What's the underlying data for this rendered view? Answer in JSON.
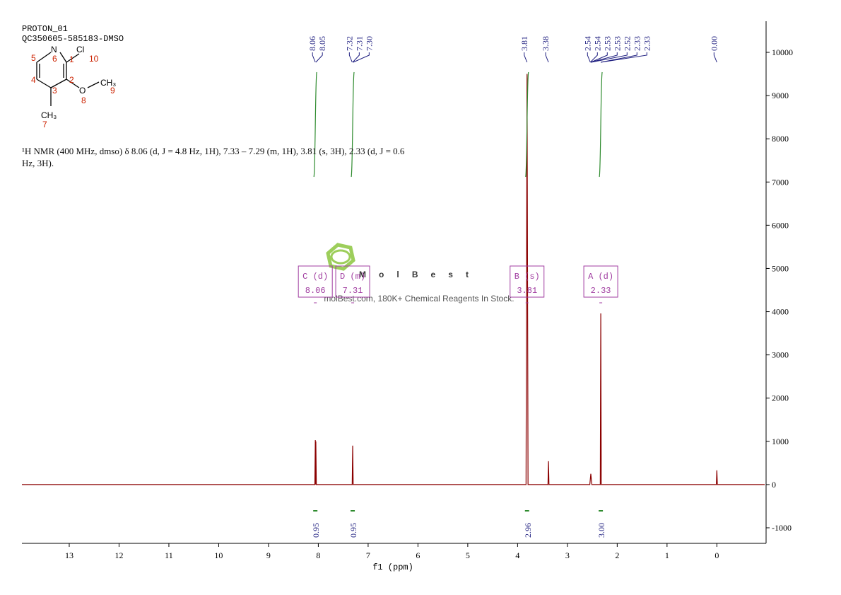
{
  "chart_data": {
    "type": "nmr",
    "title": "PROTON_01",
    "subtitle": "QC350605-585183-DMSO",
    "description": "¹H NMR (400 MHz, dmso) δ 8.06 (d, J = 4.8 Hz, 1H), 7.33 – 7.29 (m, 1H), 3.81 (s, 3H), 2.33 (d, J = 0.6 Hz, 3H).",
    "x_label": "f1 (ppm)",
    "xlim": [
      13.95,
      -0.96
    ],
    "xticks": [
      13,
      12,
      11,
      10,
      9,
      8,
      7,
      6,
      5,
      4,
      3,
      2,
      1,
      0
    ],
    "ylim": [
      -1360,
      10720
    ],
    "yticks": [
      10000,
      9000,
      8000,
      7000,
      6000,
      5000,
      4000,
      3000,
      2000,
      1000,
      0,
      -1000
    ],
    "series": [
      {
        "name": "spectrum",
        "color": "#8b0000",
        "x": [
          13.95,
          8.07,
          8.06,
          8.055,
          8.05,
          8.04,
          7.32,
          7.31,
          7.3,
          3.83,
          3.81,
          3.79,
          3.39,
          3.38,
          3.37,
          2.55,
          2.53,
          2.51,
          2.34,
          2.33,
          2.32,
          0.01,
          0.0,
          -0.01,
          -0.96
        ],
        "values": [
          0,
          0,
          1030,
          0,
          1000,
          0,
          0,
          900,
          0,
          0,
          9500,
          0,
          0,
          540,
          0,
          0,
          250,
          0,
          0,
          3960,
          0,
          0,
          330,
          0,
          0
        ]
      }
    ],
    "peaks": {
      "color": "#1f1f80",
      "values": [
        8.06,
        8.05,
        7.32,
        7.31,
        7.3,
        3.81,
        3.38,
        2.54,
        2.54,
        2.53,
        2.53,
        2.52,
        2.33,
        2.33,
        0
      ],
      "value_labels": [
        "8.06",
        "8.05",
        "7.32",
        "7.31",
        "7.30",
        "3.81",
        "3.38",
        "2.54",
        "2.54",
        "2.53",
        "2.53",
        "2.52",
        "2.33",
        "2.33",
        "0.00"
      ]
    },
    "integrals": {
      "color": "#2e8b2e",
      "x": [
        8.06,
        7.31,
        3.81,
        2.33
      ],
      "values": [
        0.95,
        0.95,
        2.96,
        3
      ],
      "value_labels": [
        "0.95",
        "0.95",
        "2.96",
        "3.00"
      ]
    },
    "multiplets": {
      "color": "#a03ca0",
      "names": [
        "C (d)",
        "D (m)",
        "B (s)",
        "A (d)"
      ],
      "shifts": [
        8.06,
        7.31,
        3.81,
        2.33
      ]
    },
    "watermark": {
      "brand": "MolBest",
      "tagline": "molBest.com, 180K+ Chemical Reagents In Stock."
    },
    "structure": {
      "atoms": [
        "N",
        "Cl",
        "O",
        "CH₃",
        "CH₃"
      ],
      "numbers": [
        "1",
        "2",
        "3",
        "4",
        "5",
        "6",
        "7",
        "8",
        "9",
        "10"
      ]
    }
  }
}
